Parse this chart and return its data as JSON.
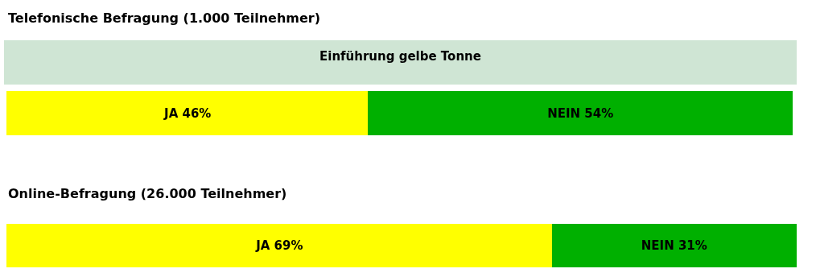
{
  "chart_data": [
    {
      "type": "bar",
      "title": "Telefonische Befragung (1.000 Teilnehmer)",
      "subtitle": "Einführung gelbe Tonne",
      "orientation": "horizontal",
      "stacked": true,
      "categories": [
        null
      ],
      "tick_labels": false,
      "series": [
        {
          "color": "#ffff00",
          "values": [
            46
          ],
          "value_labels": [
            "JA 46%"
          ]
        },
        {
          "color": "#00b000",
          "values": [
            54
          ],
          "value_labels": [
            "NEIN 54%"
          ]
        }
      ]
    },
    {
      "type": "bar",
      "title": "Online-Befragung (26.000 Teilnehmer)",
      "orientation": "horizontal",
      "stacked": true,
      "categories": [
        null
      ],
      "tick_labels": false,
      "series": [
        {
          "color": "#ffff00",
          "values": [
            69
          ],
          "value_labels": [
            "JA 69%"
          ]
        },
        {
          "color": "#00b000",
          "values": [
            31
          ],
          "value_labels": [
            "NEIN 31%"
          ]
        }
      ]
    }
  ]
}
